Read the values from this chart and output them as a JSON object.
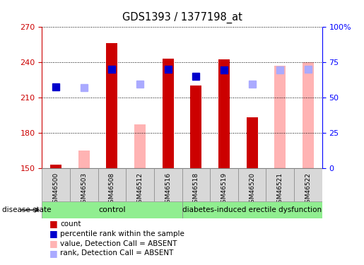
{
  "title": "GDS1393 / 1377198_at",
  "samples": [
    "GSM46500",
    "GSM46503",
    "GSM46508",
    "GSM46512",
    "GSM46516",
    "GSM46518",
    "GSM46519",
    "GSM46520",
    "GSM46521",
    "GSM46522"
  ],
  "count_values": [
    153,
    null,
    256,
    null,
    243,
    220,
    242,
    193,
    null,
    null
  ],
  "count_color": "#cc0000",
  "absent_value_values": [
    null,
    165,
    null,
    187,
    null,
    null,
    null,
    null,
    237,
    240
  ],
  "absent_value_color": "#ffb3b3",
  "percentile_rank_present": [
    219,
    null,
    234,
    null,
    234,
    228,
    233,
    null,
    null,
    null
  ],
  "percentile_rank_present_color": "#0000cc",
  "percentile_rank_absent": [
    null,
    218,
    null,
    221,
    null,
    null,
    null,
    221,
    233,
    234
  ],
  "percentile_rank_absent_color": "#aaaaff",
  "ylim_left": [
    150,
    270
  ],
  "ylim_right": [
    0,
    100
  ],
  "yticks_left": [
    150,
    180,
    210,
    240,
    270
  ],
  "yticks_right": [
    0,
    25,
    50,
    75,
    100
  ],
  "yticklabels_right": [
    "0",
    "25",
    "50",
    "75",
    "100%"
  ],
  "group_labels": [
    "control",
    "diabetes-induced erectile dysfunction"
  ],
  "group_color": "#90ee90",
  "legend_items": [
    {
      "label": "count",
      "color": "#cc0000"
    },
    {
      "label": "percentile rank within the sample",
      "color": "#0000cc"
    },
    {
      "label": "value, Detection Call = ABSENT",
      "color": "#ffb3b3"
    },
    {
      "label": "rank, Detection Call = ABSENT",
      "color": "#aaaaff"
    }
  ],
  "bar_width": 0.4,
  "marker_size": 7,
  "sample_cell_color": "#d8d8d8"
}
